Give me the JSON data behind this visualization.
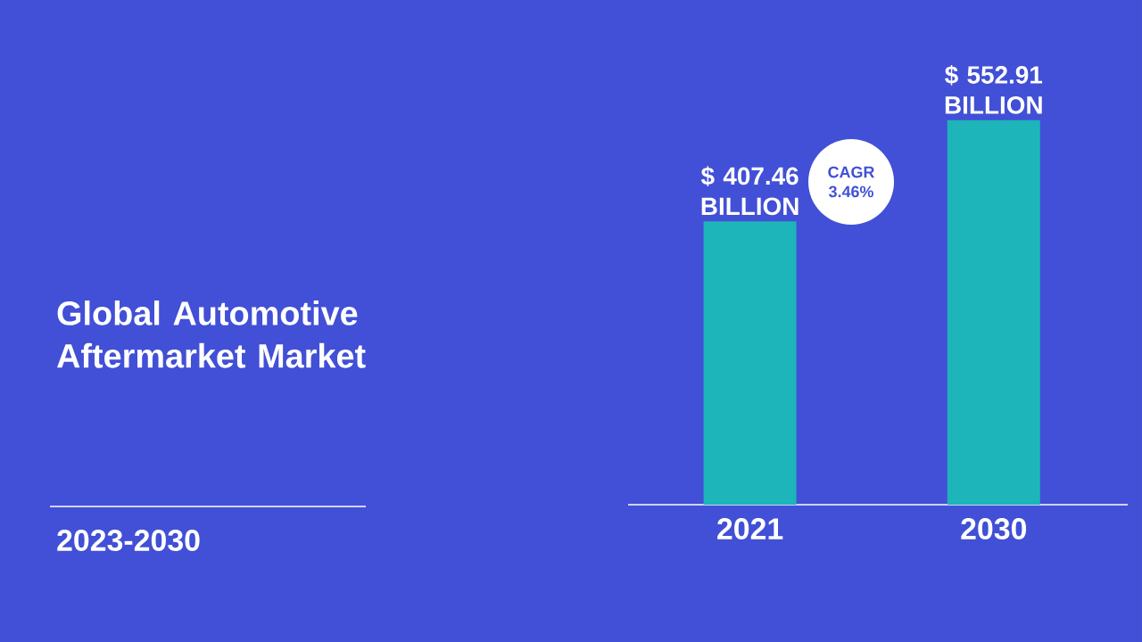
{
  "chart_data": {
    "type": "bar",
    "title": "Global Automotive Aftermarket Market",
    "subtitle": "2023-2030",
    "categories": [
      "2021",
      "2030"
    ],
    "values": [
      407.46,
      552.91
    ],
    "color": "#1db4ba",
    "value_labels": [
      "$ 407.46 BILLION",
      "$ 552.91 BILLION"
    ],
    "annotations": [
      "CAGR 3.46%"
    ]
  }
}
